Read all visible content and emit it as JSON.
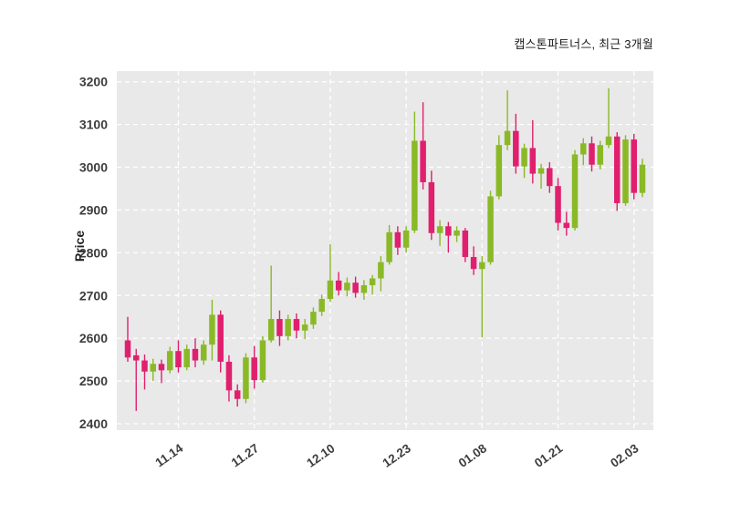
{
  "title": "캡스톤파트너스, 최근 3개월",
  "ylabel": "Price",
  "chart_data": {
    "type": "candlestick",
    "title": "캡스톤파트너스, 최근 3개월",
    "ylabel": "Price",
    "ylim": [
      2385,
      3225
    ],
    "y_ticks": [
      2400,
      2500,
      2600,
      2700,
      2800,
      2900,
      3000,
      3100,
      3200
    ],
    "x_tick_labels": [
      "11.14",
      "11.27",
      "12.10",
      "12.23",
      "01.08",
      "01.21",
      "02.03"
    ],
    "x_tick_indices": [
      6,
      15,
      24,
      33,
      42,
      51,
      60
    ],
    "grid": true,
    "legend": "none",
    "up_color": "#8ab927",
    "down_color": "#e0206e",
    "plot_bg": "#e9e9e9",
    "grid_color": "#ffffff",
    "tick_color": "#3d3d3d",
    "ohlc": [
      [
        2595,
        2650,
        2545,
        2555
      ],
      [
        2560,
        2575,
        2430,
        2548
      ],
      [
        2548,
        2562,
        2480,
        2522
      ],
      [
        2522,
        2552,
        2500,
        2540
      ],
      [
        2540,
        2550,
        2495,
        2525
      ],
      [
        2525,
        2580,
        2518,
        2570
      ],
      [
        2570,
        2595,
        2520,
        2532
      ],
      [
        2532,
        2585,
        2525,
        2575
      ],
      [
        2575,
        2600,
        2532,
        2548
      ],
      [
        2548,
        2595,
        2538,
        2585
      ],
      [
        2585,
        2690,
        2548,
        2655
      ],
      [
        2655,
        2665,
        2520,
        2545
      ],
      [
        2545,
        2560,
        2452,
        2478
      ],
      [
        2478,
        2492,
        2440,
        2458
      ],
      [
        2458,
        2565,
        2448,
        2555
      ],
      [
        2555,
        2582,
        2482,
        2502
      ],
      [
        2502,
        2605,
        2496,
        2595
      ],
      [
        2595,
        2770,
        2590,
        2645
      ],
      [
        2645,
        2665,
        2582,
        2605
      ],
      [
        2605,
        2655,
        2595,
        2645
      ],
      [
        2645,
        2658,
        2600,
        2618
      ],
      [
        2618,
        2645,
        2598,
        2632
      ],
      [
        2632,
        2672,
        2622,
        2662
      ],
      [
        2662,
        2702,
        2652,
        2692
      ],
      [
        2692,
        2820,
        2685,
        2735
      ],
      [
        2735,
        2755,
        2700,
        2712
      ],
      [
        2712,
        2742,
        2698,
        2730
      ],
      [
        2730,
        2744,
        2695,
        2706
      ],
      [
        2706,
        2736,
        2690,
        2724
      ],
      [
        2724,
        2748,
        2702,
        2740
      ],
      [
        2740,
        2792,
        2710,
        2778
      ],
      [
        2778,
        2865,
        2772,
        2848
      ],
      [
        2848,
        2862,
        2795,
        2812
      ],
      [
        2812,
        2862,
        2800,
        2852
      ],
      [
        2852,
        3130,
        2846,
        3062
      ],
      [
        3062,
        3152,
        2948,
        2965
      ],
      [
        2965,
        2992,
        2830,
        2846
      ],
      [
        2846,
        2876,
        2816,
        2862
      ],
      [
        2862,
        2872,
        2800,
        2840
      ],
      [
        2840,
        2862,
        2825,
        2852
      ],
      [
        2852,
        2858,
        2778,
        2790
      ],
      [
        2790,
        2815,
        2748,
        2762
      ],
      [
        2762,
        2792,
        2602,
        2778
      ],
      [
        2778,
        2945,
        2772,
        2932
      ],
      [
        2932,
        3075,
        2925,
        3052
      ],
      [
        3052,
        3180,
        3040,
        3085
      ],
      [
        3085,
        3125,
        2985,
        3002
      ],
      [
        3002,
        3055,
        2975,
        3045
      ],
      [
        3045,
        3110,
        2962,
        2985
      ],
      [
        2985,
        3008,
        2950,
        2998
      ],
      [
        2998,
        3012,
        2940,
        2956
      ],
      [
        2956,
        2975,
        2852,
        2870
      ],
      [
        2870,
        2896,
        2840,
        2858
      ],
      [
        2858,
        3040,
        2852,
        3030
      ],
      [
        3030,
        3068,
        3005,
        3056
      ],
      [
        3056,
        3072,
        2990,
        3006
      ],
      [
        3006,
        3062,
        2995,
        3052
      ],
      [
        3052,
        3185,
        3045,
        3072
      ],
      [
        3072,
        3082,
        2898,
        2916
      ],
      [
        2916,
        3075,
        2910,
        3065
      ],
      [
        3065,
        3078,
        2925,
        2940
      ],
      [
        2940,
        3020,
        2930,
        3006
      ]
    ]
  }
}
